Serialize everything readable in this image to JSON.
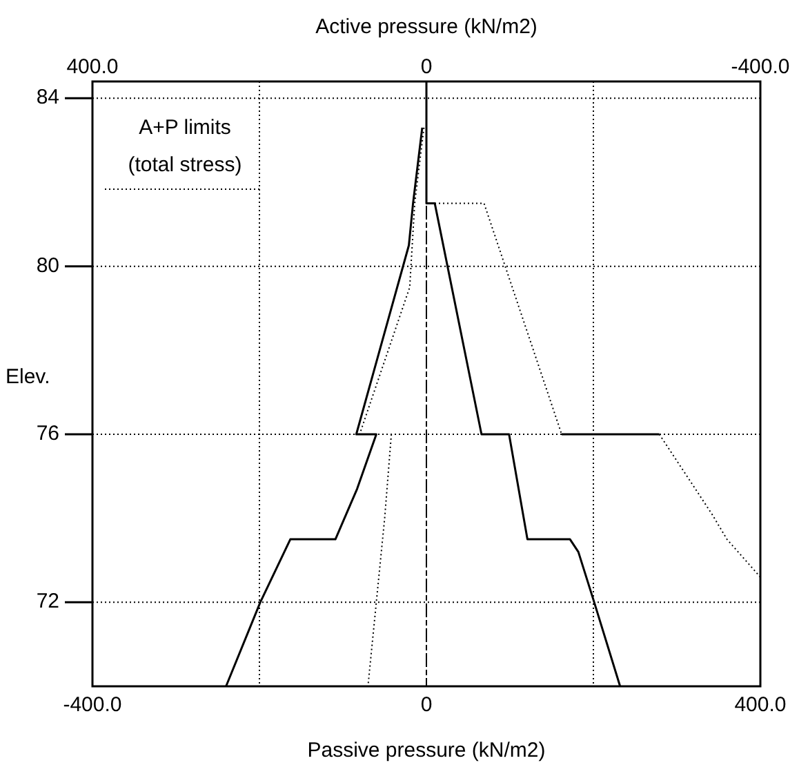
{
  "chart_data": {
    "type": "line",
    "xlabel": "Passive pressure (kN/m2)",
    "x2label": "Active pressure (kN/m2)",
    "ylabel": "Elev.",
    "annotations": [
      "A+P limits",
      "(total stress)"
    ],
    "xlim": [
      -400,
      400
    ],
    "xticks": [
      {
        "value": -400,
        "label": "-400.0"
      },
      {
        "value": -200,
        "label": null
      },
      0,
      {
        "value": 200,
        "label": null
      },
      {
        "value": 400,
        "label": "400.0"
      }
    ],
    "x2lim": [
      400,
      -400
    ],
    "x2ticks": [
      {
        "value": 400,
        "label": "400.0"
      },
      0,
      {
        "value": -400,
        "label": "-400.0"
      }
    ],
    "ylim": [
      70,
      84.4
    ],
    "yticks": [
      72,
      76,
      80,
      84
    ],
    "grid": true,
    "marker": "none",
    "ref_lines": [
      {
        "axis": "x",
        "value": 0,
        "line_style": "dashed",
        "color": "#000000"
      }
    ],
    "series": [
      {
        "color": "#000000",
        "line_style": "solid",
        "x": [
          -5,
          -16,
          -21,
          -84,
          -60,
          -83,
          -109,
          -163,
          -199,
          -240
        ],
        "values": [
          83.3,
          81.5,
          80.5,
          76,
          76,
          74.7,
          73.5,
          73.5,
          72,
          70
        ]
      },
      {
        "color": "#000000",
        "line_style": "solid",
        "x": [
          0,
          0,
          10,
          66,
          99,
          121,
          172,
          182,
          201,
          232
        ],
        "values": [
          84.4,
          81.5,
          81.5,
          76,
          76,
          73.5,
          73.5,
          73.2,
          72,
          70
        ]
      },
      {
        "color": "#000000",
        "line_style": "dotted",
        "x": [
          -3,
          -14,
          -20,
          -80
        ],
        "values": [
          83.3,
          81.5,
          79.5,
          76
        ]
      },
      {
        "color": "#000000",
        "line_style": "dotted",
        "x": [
          -42,
          -50,
          -70
        ],
        "values": [
          76,
          74,
          70
        ]
      },
      {
        "color": "#000000",
        "line_style": "dotted",
        "x": [
          0,
          69,
          162
        ],
        "values": [
          81.5,
          81.5,
          76
        ]
      },
      {
        "color": "#000000",
        "line_style": "solid",
        "x": [
          162,
          279
        ],
        "values": [
          76,
          76
        ]
      },
      {
        "color": "#000000",
        "line_style": "dotted",
        "x": [
          279,
          342,
          360,
          400
        ],
        "values": [
          76,
          74.1,
          73.5,
          72.6
        ]
      }
    ]
  }
}
